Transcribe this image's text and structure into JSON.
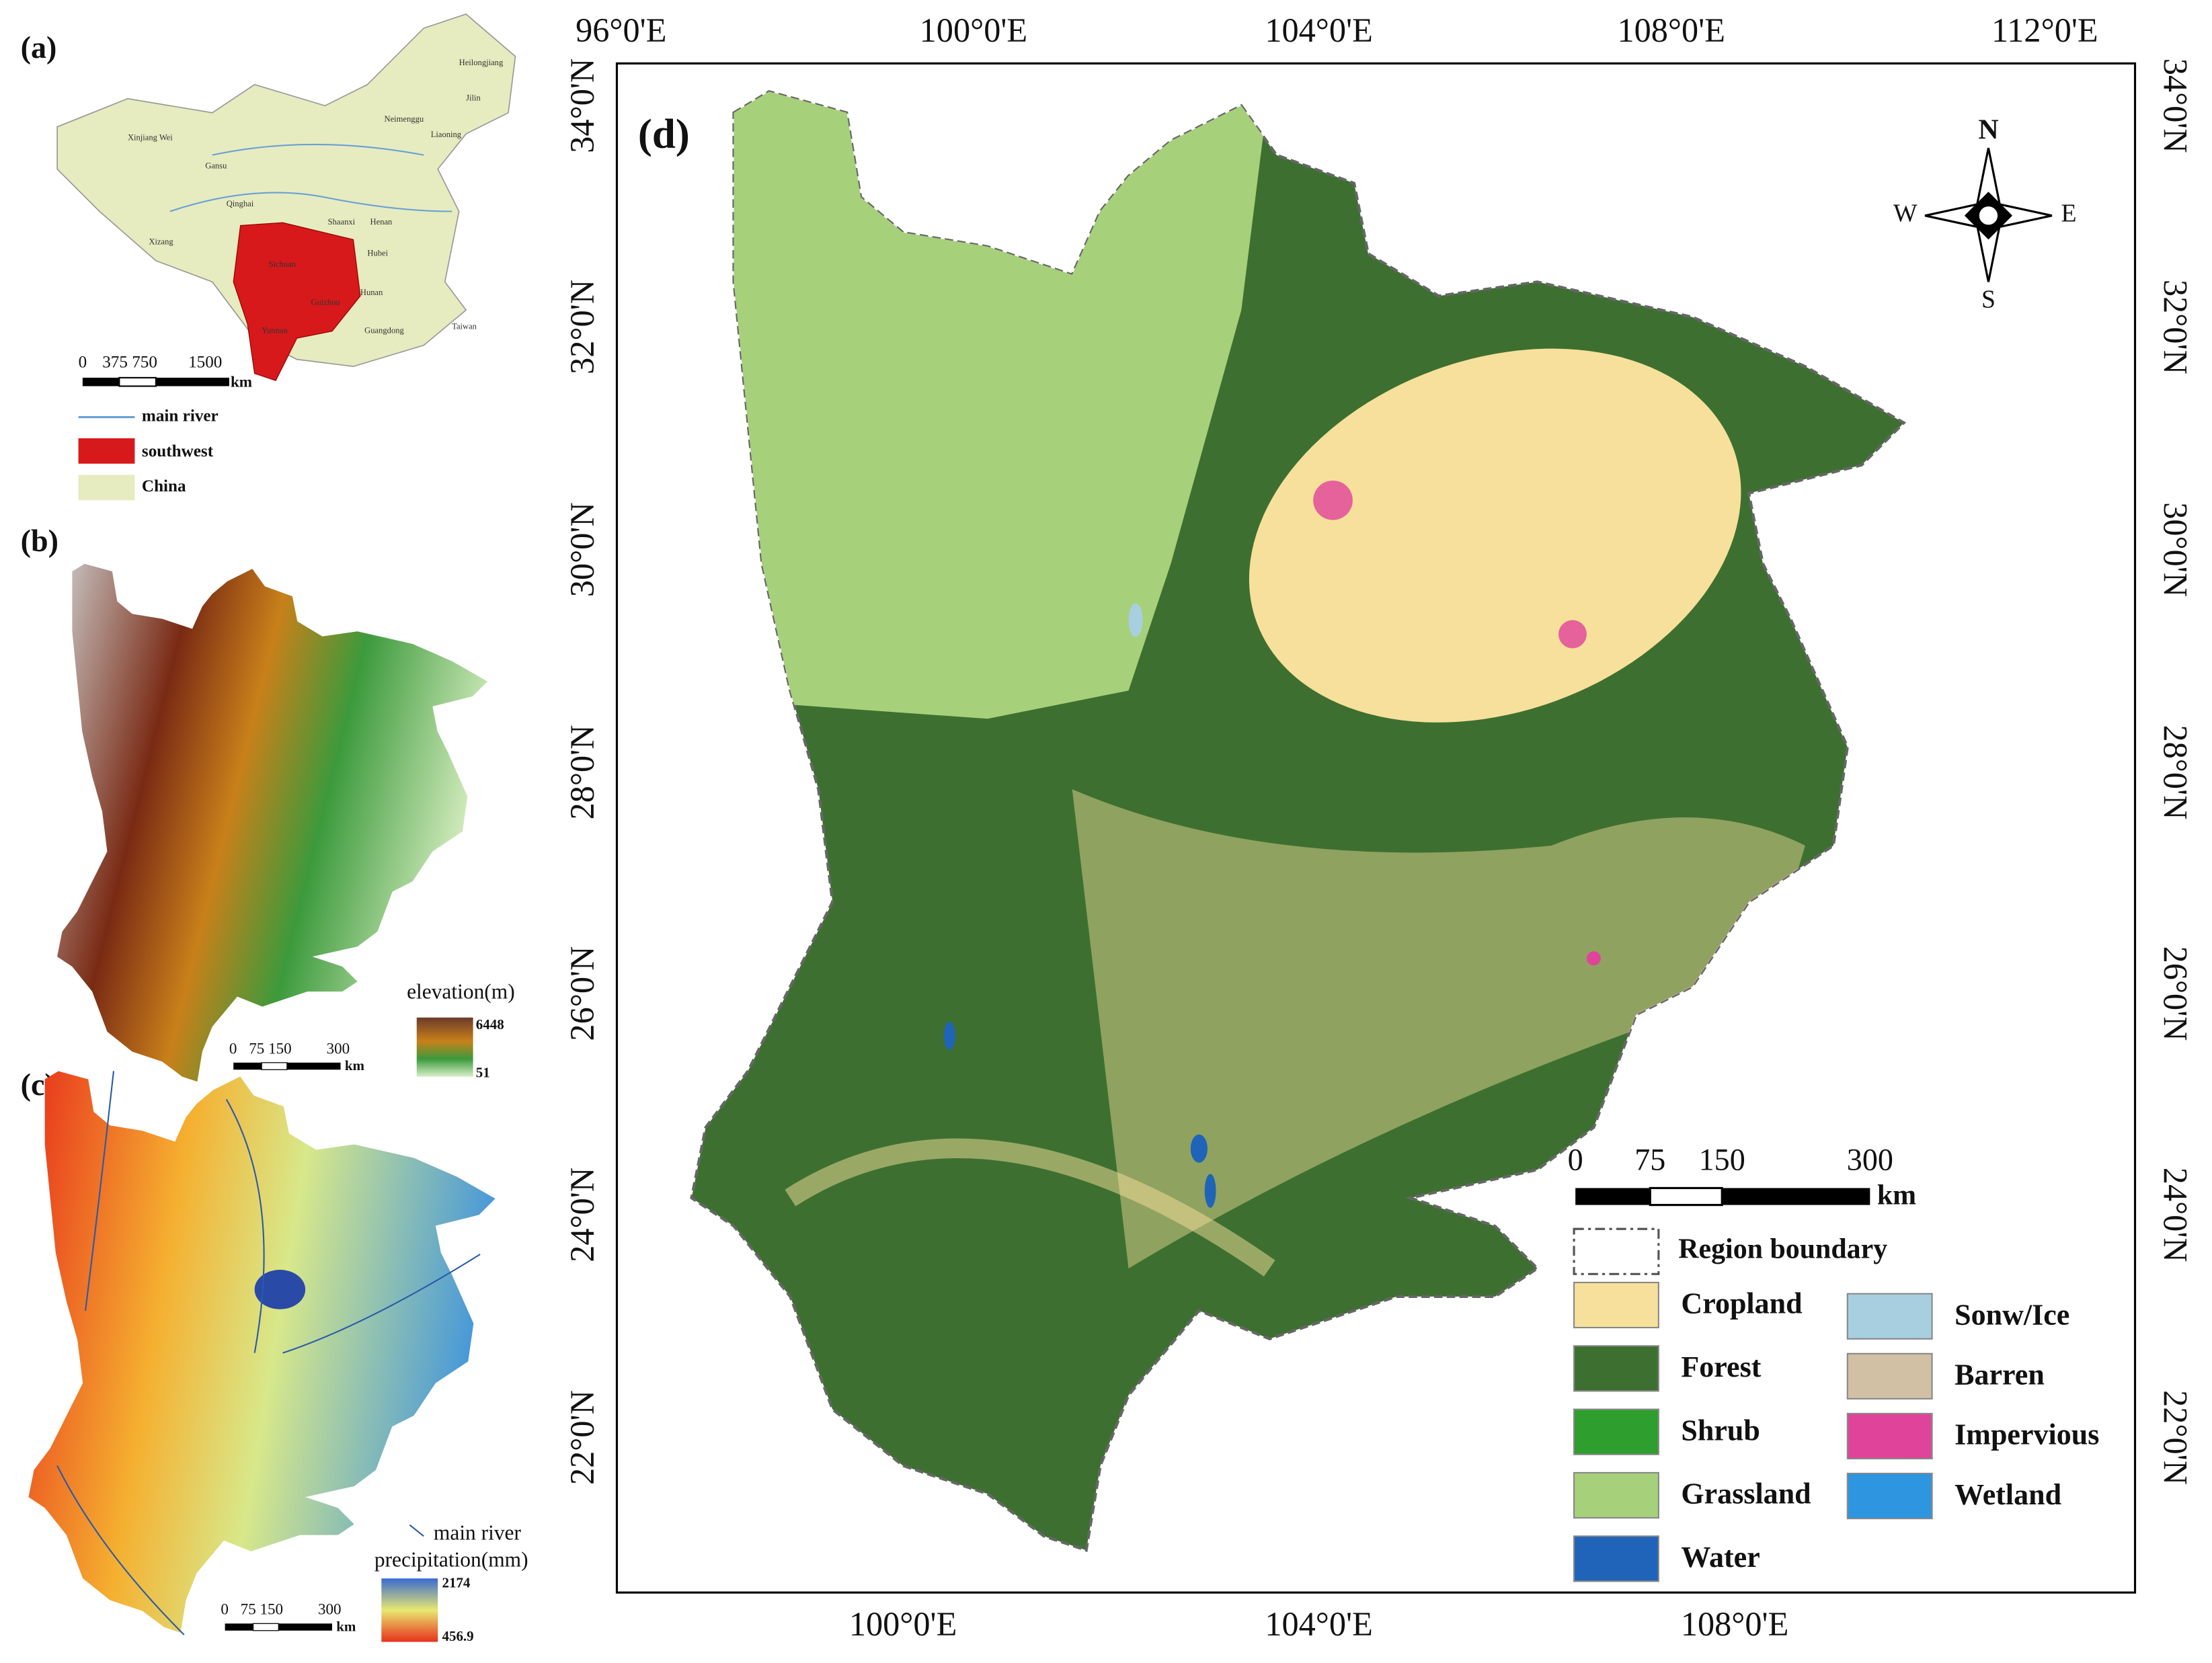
{
  "panels": {
    "a": {
      "label": "(a)",
      "scale": [
        "0",
        "375 750",
        "1500",
        "km"
      ],
      "legend": [
        "main river",
        "southwest",
        "China"
      ],
      "provinces": [
        "Heilongjiang",
        "Jilin",
        "Neimenggu",
        "Liaoning",
        "Xinjiang Wei",
        "Gansu",
        "Qinghai",
        "Xizang",
        "Sichuan",
        "Guizhou",
        "Yunnan",
        "Guangdong",
        "Hunan",
        "Hubei",
        "Shaanxi",
        "Henan",
        "Taiwan"
      ]
    },
    "b": {
      "label": "(b)",
      "legend_title": "elevation(m)",
      "legend_max": "6448",
      "legend_min": "51",
      "scale": [
        "0",
        "75 150",
        "300",
        "km"
      ]
    },
    "c": {
      "label": "(c)",
      "river": "main river",
      "legend_title": "precipitation(mm)",
      "legend_max": "2174",
      "legend_min": "456.9",
      "scale": [
        "0",
        "75 150",
        "300",
        "km"
      ]
    },
    "d": {
      "label": "(d)",
      "top_lon": [
        "96°0'E",
        "100°0'E",
        "104°0'E",
        "108°0'E",
        "112°0'E"
      ],
      "bottom_lon": [
        "100°0'E",
        "104°0'E",
        "108°0'E"
      ],
      "lat": [
        "34°0'N",
        "32°0'N",
        "30°0'N",
        "28°0'N",
        "26°0'N",
        "24°0'N",
        "22°0'N"
      ],
      "compass": [
        "N",
        "S",
        "W",
        "E"
      ],
      "scale": [
        "0",
        "75",
        "150",
        "300",
        "km"
      ],
      "boundary": "Region boundary",
      "classes": [
        {
          "name": "Cropland",
          "color": "#f7e09b"
        },
        {
          "name": "Forest",
          "color": "#3d7030"
        },
        {
          "name": "Shrub",
          "color": "#2e9e2e"
        },
        {
          "name": "Grassland",
          "color": "#a6d07a"
        },
        {
          "name": "Water",
          "color": "#1f64b8"
        },
        {
          "name": "Sonw/Ice",
          "color": "#a8cfe0"
        },
        {
          "name": "Barren",
          "color": "#d2c0a5"
        },
        {
          "name": "Impervious",
          "color": "#e0449a"
        },
        {
          "name": "Wetland",
          "color": "#2e95e0"
        }
      ]
    }
  }
}
